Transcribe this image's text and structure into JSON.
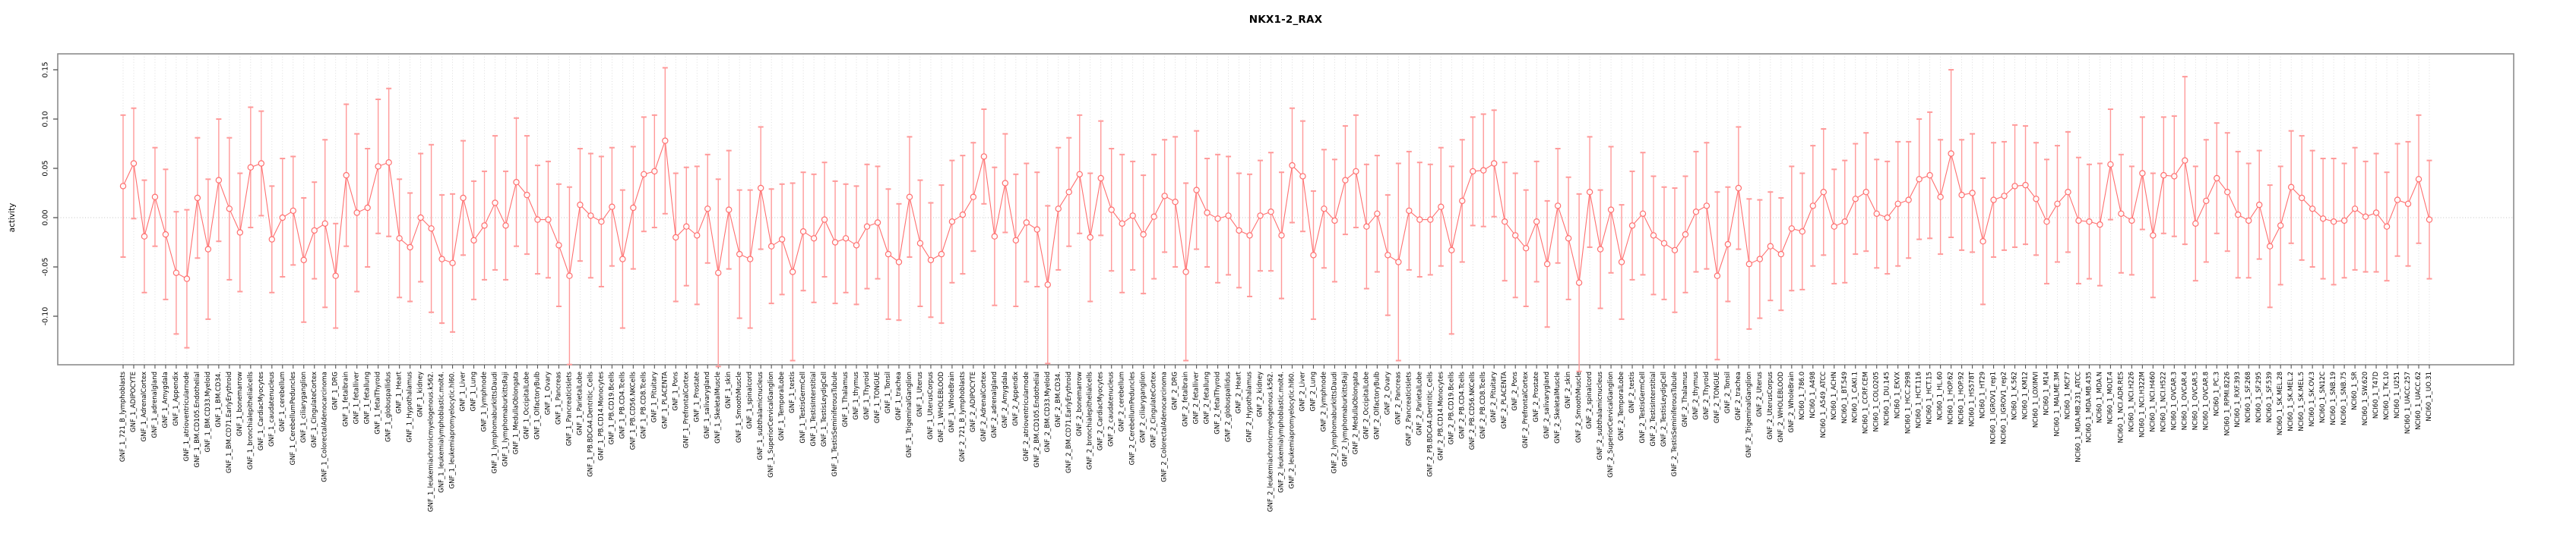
{
  "chart_data": {
    "type": "line",
    "title": "NKX1-2_RAX",
    "xlabel": "",
    "ylabel": "activity",
    "ylim": [
      -0.152,
      0.166
    ],
    "yticks": [
      0.15,
      0.1,
      0.05,
      0.0,
      -0.05,
      -0.1
    ],
    "ytick_labels": [
      "0.15",
      "0.10",
      "0.05",
      "0.00",
      "-0.05",
      "-0.10"
    ],
    "grid": "dotted vertical line per category, dotted horizontal line at zero",
    "legend_position": "none",
    "marker": "open-circle",
    "series_color": "#ff6f6f",
    "errorbar_color": "#ff9a9a",
    "box_color": "#8c8c8c",
    "gridline_color": "#d4d4d4",
    "categories": [
      "GNF_1_721_B_lymphoblasts",
      "GNF_1_ADIPOCYTE",
      "GNF_1_AdrenalCortex",
      "GNF_1_adrenalgland",
      "GNF_1_Amygdala",
      "GNF_1_Appendix",
      "GNF_1_atrioventricularnode",
      "GNF_1_BM.CD105.Endothelial",
      "GNF_1_BM.CD33.Myeloid",
      "GNF_1_BM.CD34.",
      "GNF_1_BM.CD71.EarlyErythroid",
      "GNF_1_bonemarrow",
      "GNF_1_bronchialepithelialcells",
      "GNF_1_CardiacMyocytes",
      "GNF_1_caudatenucleus",
      "GNF_1_cerebellum",
      "GNF_1_CerebellumPeduncles",
      "GNF_1_ciliaryganglion",
      "GNF_1_CingulateCortex",
      "GNF_1_ColorectalAdenocarcinoma",
      "GNF_1_DRG",
      "GNF_1_fetalbrain",
      "GNF_1_fetalliver",
      "GNF_1_fetallung",
      "GNF_1_fetalThyroid",
      "GNF_1_globuspallidus",
      "GNF_1_Heart",
      "GNF_1_Hypothalamus",
      "GNF_1_kidney",
      "GNF_1_leukemiachronicmyelogenous.k562.",
      "GNF_1_leukemialymphoblastic.molt4.",
      "GNF_1_leukemiapromyelocytic.hl60.",
      "GNF_1_Liver",
      "GNF_1_Lung",
      "GNF_1_lymphnode",
      "GNF_1_lymphomaburkittsDaudi",
      "GNF_1_lymphomaburkittsRaji",
      "GNF_1_MedullaOblongata",
      "GNF_1_OccipitalLobe",
      "GNF_1_OlfactoryBulb",
      "GNF_1_Ovary",
      "GNF_1_Pancreas",
      "GNF_1_PancreaticIslets",
      "GNF_1_ParietalLobe",
      "GNF_1_PB.BDCA4.Dentritic_Cells",
      "GNF_1_PB.CD14.Monocytes",
      "GNF_1_PB.CD19.Bcells",
      "GNF_1_PB.CD4.Tcells",
      "GNF_1_PB.CD56.NKCells",
      "GNF_1_PB.CD8.Tcells",
      "GNF_1_Pituitary",
      "GNF_1_PLACENTA",
      "GNF_1_Pons",
      "GNF_1_PrefrontalCortex",
      "GNF_1_Prostate",
      "GNF_1_salivarygland",
      "GNF_1_SkeletalMuscle",
      "GNF_1_skin",
      "GNF_1_SmoothMuscle",
      "GNF_1_spinalcord",
      "GNF_1_subthalamicnucleus",
      "GNF_1_SuperiorCervicalGanglion",
      "GNF_1_TemporalLobe",
      "GNF_1_testis",
      "GNF_1_TestisGermCell",
      "GNF_1_TestisInterstitial",
      "GNF_1_TestisLeydigCell",
      "GNF_1_TestisSeminiferousTubule",
      "GNF_1_Thalamus",
      "GNF_1_thymus",
      "GNF_1_Thyroid",
      "GNF_1_TONGUE",
      "GNF_1_Tonsil",
      "GNF_1_trachea",
      "GNF_1_TrigeminalGanglion",
      "GNF_1_Uterus",
      "GNF_1_UterusCorpus",
      "GNF_1_WHOLEBLOOD",
      "GNF_1_WholeBrain",
      "GNF_2_721_B_lymphoblasts",
      "GNF_2_ADIPOCYTE",
      "GNF_2_AdrenalCortex",
      "GNF_2_adrenalgland",
      "GNF_2_Amygdala",
      "GNF_2_Appendix",
      "GNF_2_atrioventricularnode",
      "GNF_2_BM.CD105.Endothelial",
      "GNF_2_BM.CD33.Myeloid",
      "GNF_2_BM.CD34.",
      "GNF_2_BM.CD71.EarlyErythroid",
      "GNF_2_bonemarrow",
      "GNF_2_bronchialepithelialcells",
      "GNF_2_CardiacMyocytes",
      "GNF_2_caudatenucleus",
      "GNF_2_cerebellum",
      "GNF_2_CerebellumPeduncles",
      "GNF_2_ciliaryganglion",
      "GNF_2_CingulateCortex",
      "GNF_2_ColorectalAdenocarcinoma",
      "GNF_2_DRG",
      "GNF_2_fetalbrain",
      "GNF_2_fetalliver",
      "GNF_2_fetallung",
      "GNF_2_fetalThyroid",
      "GNF_2_globuspallidus",
      "GNF_2_Heart",
      "GNF_2_Hypothalamus",
      "GNF_2_kidney",
      "GNF_2_leukemiachronicmyelogenous.k562.",
      "GNF_2_leukemialymphoblastic.molt4.",
      "GNF_2_leukemiapromyelocytic.hl60.",
      "GNF_2_Liver",
      "GNF_2_Lung",
      "GNF_2_lymphnode",
      "GNF_2_lymphomaburkittsDaudi",
      "GNF_2_lymphomaburkittsRaji",
      "GNF_2_MedullaOblongata",
      "GNF_2_OccipitalLobe",
      "GNF_2_OlfactoryBulb",
      "GNF_2_Ovary",
      "GNF_2_Pancreas",
      "GNF_2_PancreaticIslets",
      "GNF_2_ParietalLobe",
      "GNF_2_PB.BDCA4.Dentritic_Cells",
      "GNF_2_PB.CD14.Monocytes",
      "GNF_2_PB.CD19.Bcells",
      "GNF_2_PB.CD4.Tcells",
      "GNF_2_PB.CD56.NKCells",
      "GNF_2_PB.CD8.Tcells",
      "GNF_2_Pituitary",
      "GNF_2_PLACENTA",
      "GNF_2_Pons",
      "GNF_2_PrefrontalCortex",
      "GNF_2_Prostate",
      "GNF_2_salivarygland",
      "GNF_2_SkeletalMuscle",
      "GNF_2_skin",
      "GNF_2_SmoothMuscle",
      "GNF_2_spinalcord",
      "GNF_2_subthalamicnucleus",
      "GNF_2_SuperiorCervicalGanglion",
      "GNF_2_TemporalLobe",
      "GNF_2_testis",
      "GNF_2_TestisGermCell",
      "GNF_2_TestisInterstitial",
      "GNF_2_TestisLeydigCell",
      "GNF_2_TestisSeminiferousTubule",
      "GNF_2_Thalamus",
      "GNF_2_thymus",
      "GNF_2_Thyroid",
      "GNF_2_TONGUE",
      "GNF_2_Tonsil",
      "GNF_2_trachea",
      "GNF_2_TrigeminalGanglion",
      "GNF_2_Uterus",
      "GNF_2_UterusCorpus",
      "GNF_2_WHOLEBLOOD",
      "GNF_2_WholeBrain",
      "NCI60_1_786.0",
      "NCI60_1_A498",
      "NCI60_1_A549_ATCC",
      "NCI60_1_ACHN",
      "NCI60_1_BT.549",
      "NCI60_1_CAKI.1",
      "NCI60_1_CCRF.CEM",
      "NCI60_1_COLO205",
      "NCI60_1_DU.145",
      "NCI60_1_EKVX",
      "NCI60_1_HCC.2998",
      "NCI60_1_HCT.116",
      "NCI60_1_HCT.15",
      "NCI60_1_HL.60",
      "NCI60_1_HOP.62",
      "NCI60_1_HOP.92",
      "NCI60_1_HS578T",
      "NCI60_1_HT29",
      "NCI60_1_IGROV1_rep1",
      "NCI60_1_IGROV1_rep2",
      "NCI60_1_K.562",
      "NCI60_1_KM12",
      "NCI60_1_LOXIMVI",
      "NCI60_1_M14",
      "NCI60_1_MALME.3M",
      "NCI60_1_MCF7",
      "NCI60_1_MDA.MB.231_ATCC",
      "NCI60_1_MDA.MB.435",
      "NCI60_1_MDA.N",
      "NCI60_1_MOLT.4",
      "NCI60_1_NCI.ADR.RES",
      "NCI60_1_NCI.H226",
      "NCI60_1_NCI.H322M",
      "NCI60_1_NCI.H460",
      "NCI60_1_NCI.H522",
      "NCI60_1_OVCAR.3",
      "NCI60_1_OVCAR.4",
      "NCI60_1_OVCAR.5",
      "NCI60_1_OVCAR.8",
      "NCI60_1_PC.3",
      "NCI60_1_RPMI.8226",
      "NCI60_1_RXF.393",
      "NCI60_1_SF.268",
      "NCI60_1_SF.295",
      "NCI60_1_SF.539",
      "NCI60_1_SK.MEL.28",
      "NCI60_1_SK.MEL.2",
      "NCI60_1_SK.MEL.5",
      "NCI60_1_SK.OV.3",
      "NCI60_1_SN12C",
      "NCI60_1_SNB.19",
      "NCI60_1_SNB.75",
      "NCI60_1_SR",
      "NCI60_1_SW.620",
      "NCI60_1_T47D",
      "NCI60_1_TK.10",
      "NCI60_1_U251",
      "NCI60_1_UACC.257",
      "NCI60_1_UACC.62",
      "NCI60_1_UO.31"
    ],
    "values": [
      0.032,
      0.055,
      -0.019,
      0.021,
      -0.017,
      -0.056,
      -0.062,
      0.02,
      -0.032,
      0.038,
      0.009,
      -0.015,
      0.051,
      0.055,
      -0.022,
      0.0,
      0.007,
      -0.043,
      -0.013,
      -0.006,
      -0.059,
      0.043,
      0.005,
      0.01,
      0.052,
      0.056,
      -0.021,
      -0.03,
      0.0,
      -0.011,
      -0.042,
      -0.046,
      0.02,
      -0.023,
      -0.008,
      0.015,
      -0.008,
      0.036,
      0.023,
      -0.002,
      -0.002,
      -0.028,
      -0.059,
      0.013,
      0.002,
      -0.004,
      0.011,
      -0.042,
      0.01,
      0.044,
      0.047,
      0.078,
      -0.02,
      -0.009,
      -0.018,
      0.009,
      -0.056,
      0.008,
      -0.037,
      -0.042,
      0.03,
      -0.029,
      -0.022,
      -0.055,
      -0.014,
      -0.021,
      -0.002,
      -0.025,
      -0.021,
      -0.028,
      -0.009,
      -0.005,
      -0.037,
      -0.045,
      0.021,
      -0.026,
      -0.043,
      -0.037,
      -0.004,
      0.003,
      0.021,
      0.062,
      -0.019,
      0.035,
      -0.023,
      -0.005,
      -0.012,
      -0.068,
      0.009,
      0.026,
      0.044,
      -0.02,
      0.04,
      0.008,
      -0.006,
      0.002,
      -0.017,
      0.001,
      0.022,
      0.016,
      -0.055,
      0.028,
      0.005,
      -0.001,
      0.002,
      -0.013,
      -0.018,
      0.002,
      0.006,
      -0.018,
      0.053,
      0.042,
      -0.038,
      0.009,
      -0.003,
      0.038,
      0.047,
      -0.009,
      0.004,
      -0.038,
      -0.045,
      0.007,
      -0.002,
      -0.002,
      0.011,
      -0.033,
      0.017,
      0.047,
      0.048,
      0.055,
      -0.004,
      -0.018,
      -0.031,
      -0.004,
      -0.047,
      0.012,
      -0.021,
      -0.066,
      0.026,
      -0.032,
      0.008,
      -0.045,
      -0.008,
      0.004,
      -0.018,
      -0.026,
      -0.033,
      -0.017,
      0.006,
      0.012,
      -0.059,
      -0.027,
      0.03,
      -0.047,
      -0.042,
      -0.029,
      -0.037,
      -0.011,
      -0.014,
      0.012,
      0.026,
      -0.009,
      -0.004,
      0.019,
      0.026,
      0.004,
      0.0,
      0.014,
      0.018,
      0.039,
      0.043,
      0.021,
      0.065,
      0.023,
      0.025,
      -0.024,
      0.018,
      0.022,
      0.032,
      0.033,
      0.019,
      -0.004,
      0.014,
      0.026,
      -0.003,
      -0.004,
      -0.007,
      0.054,
      0.004,
      -0.003,
      0.045,
      -0.018,
      0.043,
      0.042,
      0.058,
      -0.006,
      0.017,
      0.04,
      0.026,
      0.003,
      -0.003,
      0.013,
      -0.029,
      -0.008,
      0.031,
      0.02,
      0.009,
      -0.001,
      -0.004,
      -0.003,
      0.009,
      0.001,
      0.005,
      -0.009,
      0.018,
      0.014,
      0.039,
      -0.002
    ],
    "errors": [
      0.072,
      0.056,
      0.057,
      0.05,
      0.066,
      0.062,
      0.07,
      0.061,
      0.071,
      0.062,
      0.072,
      0.06,
      0.061,
      0.053,
      0.054,
      0.06,
      0.055,
      0.063,
      0.049,
      0.085,
      0.053,
      0.072,
      0.08,
      0.06,
      0.068,
      0.075,
      0.06,
      0.055,
      0.065,
      0.085,
      0.065,
      0.07,
      0.058,
      0.06,
      0.055,
      0.068,
      0.055,
      0.065,
      0.06,
      0.055,
      0.059,
      0.062,
      0.09,
      0.057,
      0.063,
      0.066,
      0.06,
      0.07,
      0.062,
      0.058,
      0.057,
      0.074,
      0.065,
      0.06,
      0.07,
      0.055,
      0.095,
      0.06,
      0.065,
      0.07,
      0.062,
      0.058,
      0.056,
      0.09,
      0.06,
      0.065,
      0.058,
      0.062,
      0.055,
      0.06,
      0.063,
      0.057,
      0.066,
      0.059,
      0.061,
      0.064,
      0.058,
      0.07,
      0.062,
      0.06,
      0.055,
      0.048,
      0.07,
      0.05,
      0.067,
      0.06,
      0.058,
      0.08,
      0.062,
      0.055,
      0.06,
      0.065,
      0.058,
      0.062,
      0.07,
      0.055,
      0.06,
      0.063,
      0.057,
      0.066,
      0.09,
      0.06,
      0.055,
      0.065,
      0.06,
      0.058,
      0.062,
      0.056,
      0.06,
      0.064,
      0.058,
      0.056,
      0.065,
      0.06,
      0.062,
      0.055,
      0.057,
      0.063,
      0.059,
      0.061,
      0.1,
      0.06,
      0.058,
      0.056,
      0.06,
      0.085,
      0.062,
      0.055,
      0.057,
      0.054,
      0.06,
      0.063,
      0.059,
      0.061,
      0.064,
      0.058,
      0.062,
      0.09,
      0.056,
      0.06,
      0.064,
      0.058,
      0.055,
      0.062,
      0.06,
      0.057,
      0.063,
      0.059,
      0.061,
      0.064,
      0.085,
      0.058,
      0.062,
      0.066,
      0.06,
      0.055,
      0.057,
      0.063,
      0.059,
      0.061,
      0.064,
      0.058,
      0.062,
      0.056,
      0.06,
      0.055,
      0.057,
      0.063,
      0.059,
      0.061,
      0.064,
      0.058,
      0.085,
      0.056,
      0.06,
      0.064,
      0.058,
      0.055,
      0.062,
      0.06,
      0.057,
      0.063,
      0.059,
      0.061,
      0.064,
      0.058,
      0.062,
      0.056,
      0.06,
      0.055,
      0.057,
      0.063,
      0.059,
      0.061,
      0.085,
      0.058,
      0.062,
      0.056,
      0.06,
      0.064,
      0.058,
      0.055,
      0.062,
      0.06,
      0.057,
      0.063,
      0.059,
      0.061,
      0.064,
      0.058,
      0.062,
      0.056,
      0.06,
      0.055,
      0.057,
      0.063,
      0.065,
      0.06
    ]
  }
}
